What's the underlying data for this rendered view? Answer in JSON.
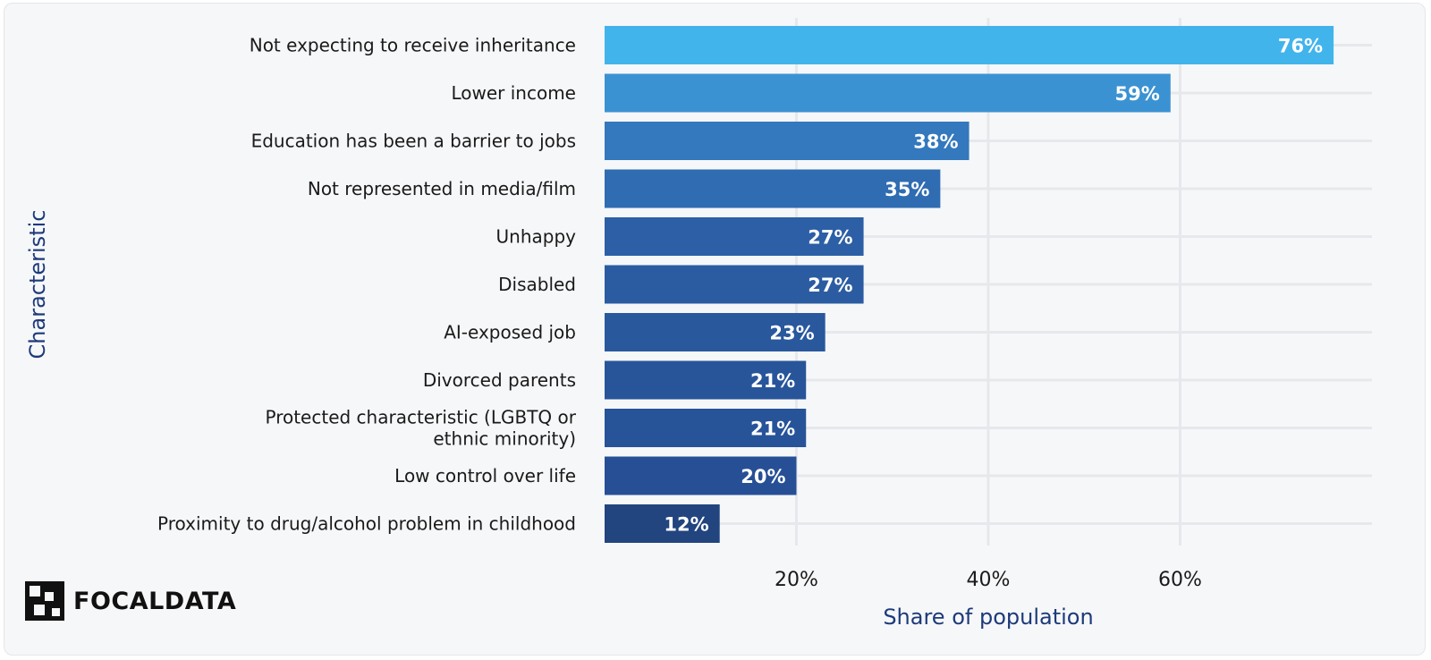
{
  "chart_data": {
    "type": "bar",
    "orientation": "horizontal",
    "categories": [
      "Not expecting to receive inheritance",
      "Lower income",
      "Education has been a barrier to jobs",
      "Not represented in media/film",
      "Unhappy",
      "Disabled",
      "AI-exposed job",
      "Divorced parents",
      "Protected characteristic (LGBTQ or ethnic minority)",
      "Low control over life",
      "Proximity to drug/alcohol problem in childhood"
    ],
    "values": [
      76,
      59,
      38,
      35,
      27,
      27,
      23,
      21,
      21,
      20,
      12
    ],
    "value_labels": [
      "76%",
      "59%",
      "38%",
      "35%",
      "27%",
      "27%",
      "23%",
      "21%",
      "21%",
      "20%",
      "12%"
    ],
    "colors": [
      "#42b4ec",
      "#3b92d2",
      "#3478bd",
      "#2f6cb2",
      "#2c5fa5",
      "#2b5ca2",
      "#29589d",
      "#28559a",
      "#275399",
      "#264f96",
      "#22447f"
    ],
    "xlabel": "Share of population",
    "ylabel": "Characteristic",
    "xlim": [
      0,
      80
    ],
    "xticks": [
      20,
      40,
      60
    ],
    "xtick_labels": [
      "20%",
      "40%",
      "60%"
    ],
    "grid": true
  },
  "branding": {
    "logo_text": "FOCALDATA"
  }
}
